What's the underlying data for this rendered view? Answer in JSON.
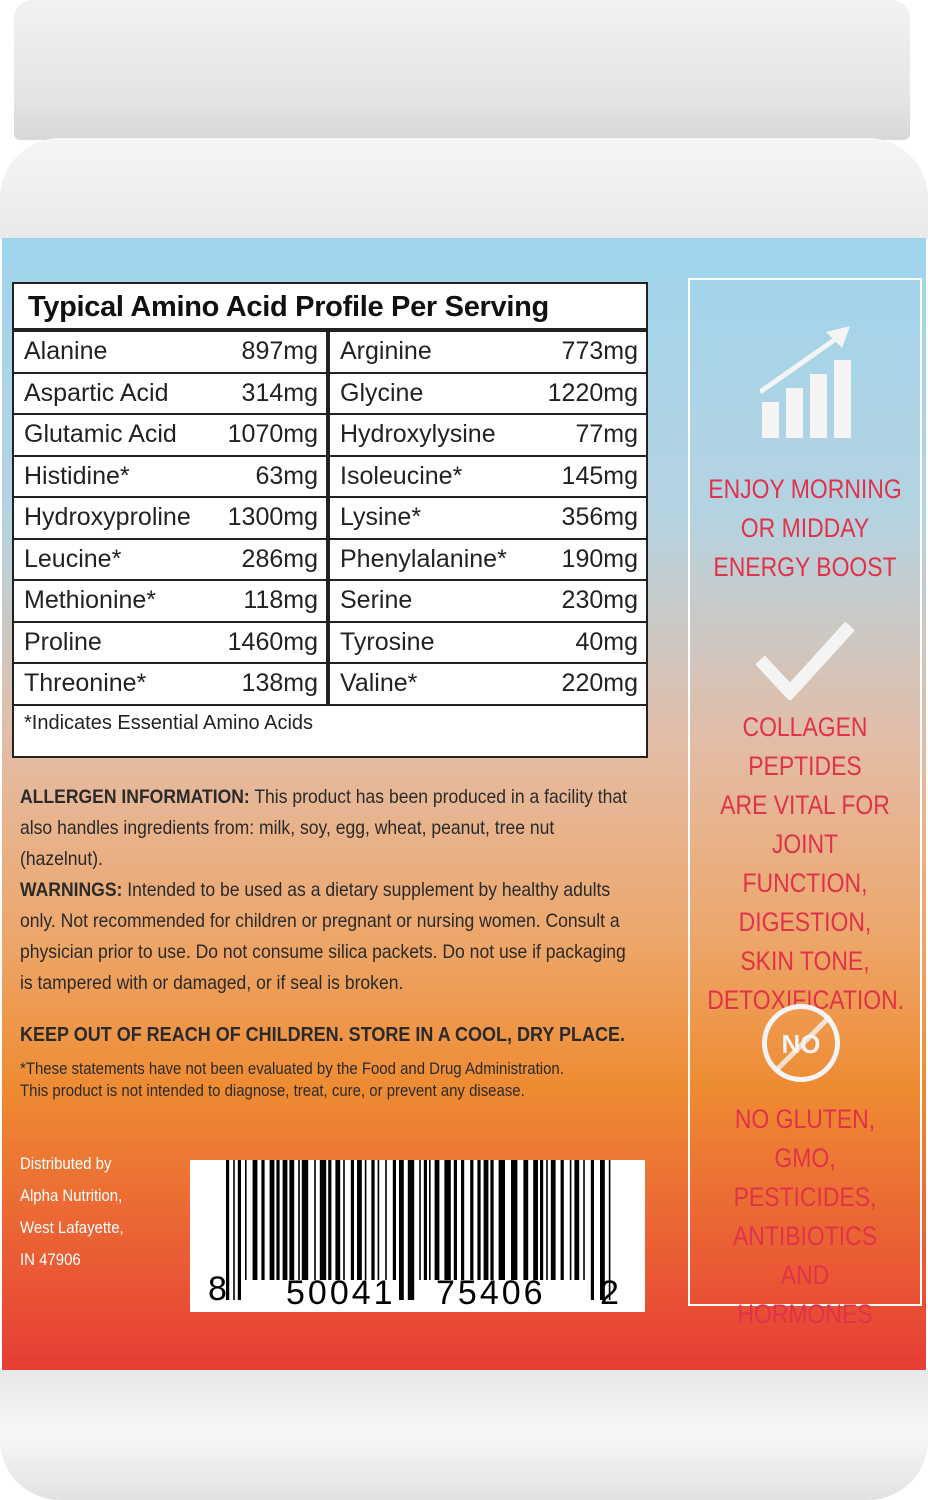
{
  "table": {
    "title": "Typical Amino Acid Profile Per Serving",
    "left": [
      {
        "name": "Alanine",
        "amount": "897mg"
      },
      {
        "name": "Aspartic Acid",
        "amount": "314mg"
      },
      {
        "name": "Glutamic Acid",
        "amount": "1070mg"
      },
      {
        "name": "Histidine*",
        "amount": "63mg"
      },
      {
        "name": "Hydroxyproline",
        "amount": "1300mg"
      },
      {
        "name": "Leucine*",
        "amount": "286mg"
      },
      {
        "name": "Methionine*",
        "amount": "118mg"
      },
      {
        "name": "Proline",
        "amount": "1460mg"
      },
      {
        "name": "Threonine*",
        "amount": "138mg"
      }
    ],
    "right": [
      {
        "name": "Arginine",
        "amount": "773mg"
      },
      {
        "name": "Glycine",
        "amount": "1220mg"
      },
      {
        "name": "Hydroxylysine",
        "amount": "77mg"
      },
      {
        "name": "Isoleucine*",
        "amount": "145mg"
      },
      {
        "name": "Lysine*",
        "amount": "356mg"
      },
      {
        "name": "Phenylalanine*",
        "amount": "190mg"
      },
      {
        "name": "Serine",
        "amount": "230mg"
      },
      {
        "name": "Tyrosine",
        "amount": "40mg"
      },
      {
        "name": "Valine*",
        "amount": "220mg"
      }
    ],
    "footnote": "*Indicates Essential Amino Acids"
  },
  "allergen": {
    "label": "ALLERGEN INFORMATION:",
    "text": "This product has been produced in a facility that also handles ingredients from: milk, soy, egg, wheat, peanut, tree nut (hazelnut)."
  },
  "warnings": {
    "label": "WARNINGS:",
    "text": "Intended to be used as a dietary supplement by healthy adults only. Not recommended for children or pregnant or nursing women. Consult a physician prior to use. Do not consume silica packets. Do not use if packaging is tampered with or damaged, or if seal is broken."
  },
  "keep_out": "KEEP OUT OF REACH OF CHILDREN. STORE IN A COOL, DRY PLACE.",
  "fda": [
    "*These statements have not been evaluated by the Food and Drug Administration.",
    "This product is not intended to diagnose, treat, cure, or prevent any disease."
  ],
  "distributor": [
    "Distributed by",
    "Alpha Nutrition,",
    "West Lafayette,",
    "IN 47906"
  ],
  "barcode": {
    "first": "8",
    "left": "50041",
    "right": "75406",
    "check": "2"
  },
  "panel": {
    "energy": [
      "ENJOY MORNING",
      "OR MIDDAY",
      "ENERGY BOOST"
    ],
    "collagen": [
      "COLLAGEN",
      "PEPTIDES",
      "ARE VITAL FOR",
      "JOINT FUNCTION,",
      "DIGESTION,",
      "SKIN TONE,",
      "DETOXIFICATION."
    ],
    "no_badge": "NO",
    "no_list": [
      "NO GLUTEN, GMO,",
      "PESTICIDES,",
      "ANTIBIOTICS AND",
      "HORMONES"
    ],
    "icons": [
      "growth-chart-icon",
      "checkmark-icon",
      "no-symbol-icon"
    ]
  },
  "colors": {
    "panel_text": "#e0324a",
    "label_top": "#9fd4ee",
    "label_bottom": "#e63c35"
  }
}
